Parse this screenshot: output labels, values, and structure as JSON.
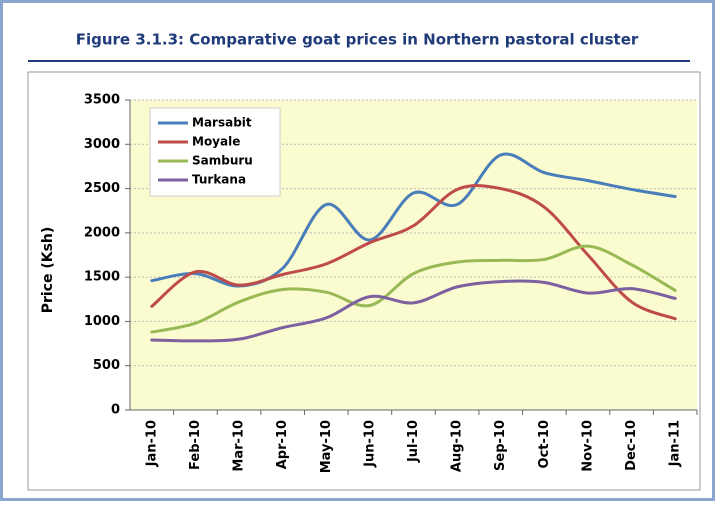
{
  "chart_data": {
    "type": "line",
    "title": "Figure 3.1.3:  Comparative goat prices in Northern pastoral cluster",
    "y_label": "Price (Ksh)",
    "categories": [
      "Jan-10",
      "Feb-10",
      "Mar-10",
      "Apr-10",
      "May-10",
      "Jun-10",
      "Jul-10",
      "Aug-10",
      "Sep-10",
      "Oct-10",
      "Nov-10",
      "Dec-10",
      "Jan-11"
    ],
    "series": [
      {
        "name": "Marsabit",
        "color": "#4a7ebb",
        "values": [
          1460,
          1540,
          1400,
          1600,
          2320,
          1920,
          2450,
          2320,
          2880,
          2680,
          2590,
          2490,
          2410
        ]
      },
      {
        "name": "Moyale",
        "color": "#be4b48",
        "values": [
          1170,
          1560,
          1410,
          1530,
          1650,
          1890,
          2080,
          2490,
          2500,
          2290,
          1750,
          1220,
          1030
        ]
      },
      {
        "name": "Samburu",
        "color": "#98b954",
        "values": [
          880,
          980,
          1220,
          1360,
          1330,
          1180,
          1540,
          1670,
          1690,
          1700,
          1850,
          1640,
          1350
        ]
      },
      {
        "name": "Turkana",
        "color": "#7d60a0",
        "values": [
          790,
          780,
          800,
          930,
          1040,
          1280,
          1210,
          1390,
          1450,
          1440,
          1320,
          1370,
          1260
        ]
      }
    ],
    "ylim": [
      0,
      3500
    ],
    "yticks": [
      0,
      500,
      1000,
      1500,
      2000,
      2500,
      3000,
      3500
    ],
    "grid": true,
    "legend": "upper left"
  }
}
